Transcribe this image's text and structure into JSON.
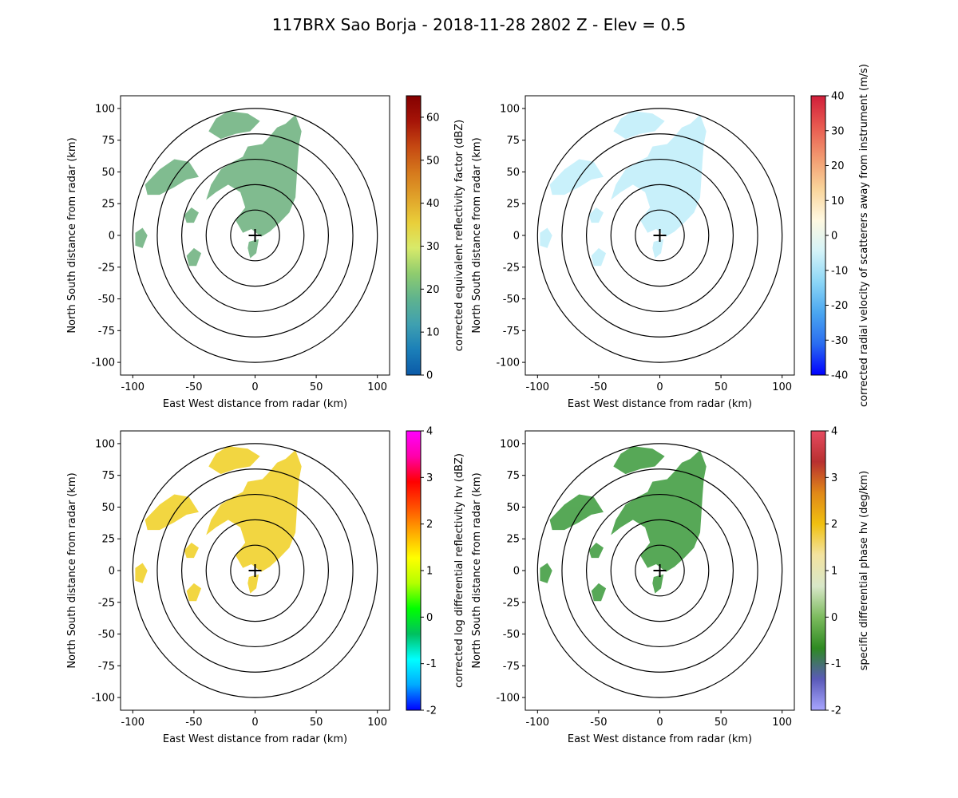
{
  "figure_title": "117BRX Sao Borja - 2018-11-28 2802 Z -  Elev = 0.5",
  "chart_data": [
    {
      "type": "heatmap",
      "field": "corrected_reflectivity",
      "xlabel": "East West distance from radar (km)",
      "ylabel": "North South distance from radar (km)",
      "xlim": [
        -110,
        110
      ],
      "ylim": [
        -110,
        110
      ],
      "xticks": [
        -100,
        -50,
        0,
        50,
        100
      ],
      "yticks": [
        -100,
        -75,
        -50,
        -25,
        0,
        25,
        50,
        75,
        100
      ],
      "range_rings_km": [
        20,
        40,
        60,
        80,
        100
      ],
      "radar_location": [
        0,
        0
      ],
      "colorbar": {
        "label": "corrected equivalent reflectivity factor (dBZ)",
        "vmin": 0,
        "vmax": 65,
        "ticks": [
          0,
          10,
          20,
          30,
          40,
          50,
          60
        ],
        "colors": [
          "#0b5aa8",
          "#1b7fb8",
          "#3fa0b0",
          "#5fb38e",
          "#8fcc6e",
          "#d8ea6a",
          "#e9cf3a",
          "#e0a22a",
          "#d5781c",
          "#c54812",
          "#a51408",
          "#840000"
        ]
      },
      "echo_color": "#6ab07c"
    },
    {
      "type": "heatmap",
      "field": "corrected_velocity",
      "xlabel": "East West distance from radar (km)",
      "ylabel": "North South distance from radar (km)",
      "xlim": [
        -110,
        110
      ],
      "ylim": [
        -110,
        110
      ],
      "xticks": [
        -100,
        -50,
        0,
        50,
        100
      ],
      "yticks": [
        -100,
        -75,
        -50,
        -25,
        0,
        25,
        50,
        75,
        100
      ],
      "range_rings_km": [
        20,
        40,
        60,
        80,
        100
      ],
      "radar_location": [
        0,
        0
      ],
      "colorbar": {
        "label": "corrected radial velocity of scatterers away from instrument (m/s)",
        "vmin": -40,
        "vmax": 40,
        "ticks": [
          -40,
          -30,
          -20,
          -10,
          0,
          10,
          20,
          30,
          40
        ],
        "colors": [
          "#0000ff",
          "#2a6cf0",
          "#4aa6f0",
          "#8cd6f6",
          "#d4f3f8",
          "#fff8e0",
          "#f9d49a",
          "#f29a70",
          "#e85a50",
          "#d11e3a"
        ]
      },
      "echo_color": "#bfeefa"
    },
    {
      "type": "heatmap",
      "field": "corrected_differential_reflectivity",
      "xlabel": "East West distance from radar (km)",
      "ylabel": "North South distance from radar (km)",
      "xlim": [
        -110,
        110
      ],
      "ylim": [
        -110,
        110
      ],
      "xticks": [
        -100,
        -50,
        0,
        50,
        100
      ],
      "yticks": [
        -100,
        -75,
        -50,
        -25,
        0,
        25,
        50,
        75,
        100
      ],
      "range_rings_km": [
        20,
        40,
        60,
        80,
        100
      ],
      "radar_location": [
        0,
        0
      ],
      "colorbar": {
        "label": "corrected log differential reflectivity hv (dBZ)",
        "vmin": -2,
        "vmax": 4,
        "ticks": [
          -2,
          -1,
          0,
          1,
          2,
          3,
          4
        ],
        "colors": [
          "#0000ff",
          "#00aaff",
          "#00ffff",
          "#00c060",
          "#00ff00",
          "#b4ff00",
          "#ffff00",
          "#ffaa00",
          "#ff5000",
          "#ff0000",
          "#ff00aa",
          "#ff00ff"
        ]
      },
      "echo_color": "#f0d020"
    },
    {
      "type": "heatmap",
      "field": "specific_differential_phase",
      "xlabel": "East West distance from radar (km)",
      "ylabel": "North South distance from radar (km)",
      "xlim": [
        -110,
        110
      ],
      "ylim": [
        -110,
        110
      ],
      "xticks": [
        -100,
        -50,
        0,
        50,
        100
      ],
      "yticks": [
        -100,
        -75,
        -50,
        -25,
        0,
        25,
        50,
        75,
        100
      ],
      "range_rings_km": [
        20,
        40,
        60,
        80,
        100
      ],
      "radar_location": [
        0,
        0
      ],
      "colorbar": {
        "label": "specific differential phase hv (deg/km)",
        "vmin": -2,
        "vmax": 4,
        "ticks": [
          -2,
          -1,
          0,
          1,
          2,
          3,
          4
        ],
        "colors": [
          "#a8a6ff",
          "#5a5ab8",
          "#2e8a22",
          "#7cbb5e",
          "#d8e7c8",
          "#f3e3a0",
          "#f0c010",
          "#e08818",
          "#b83030",
          "#e64a60"
        ]
      },
      "echo_color": "#3a9a3a"
    }
  ]
}
